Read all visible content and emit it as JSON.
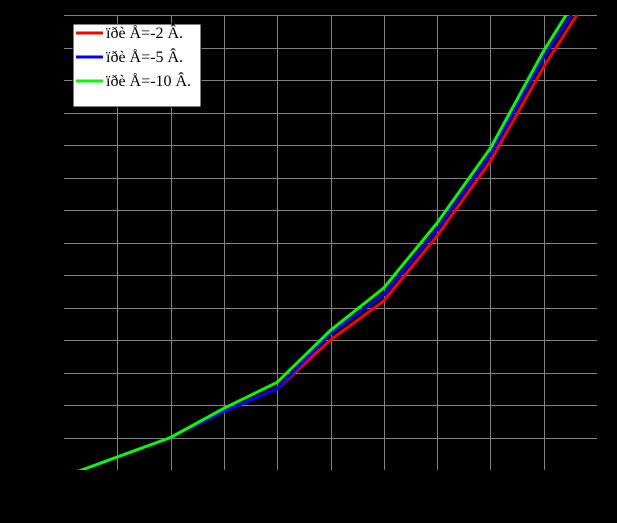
{
  "chart_data": {
    "type": "line",
    "title": "",
    "xlabel": "",
    "ylabel": "",
    "xlim": [
      0,
      10
    ],
    "ylim": [
      0,
      14
    ],
    "x_gridlines": [
      1,
      2,
      3,
      4,
      5,
      6,
      7,
      8,
      9
    ],
    "y_gridlines": [
      1,
      2,
      3,
      4,
      5,
      6,
      7,
      8,
      9,
      10,
      11,
      12,
      13,
      14
    ],
    "grid": true,
    "legend_position": "top-left",
    "series": [
      {
        "name": "ïðè Å=-2 Â.",
        "color": "#ff0000",
        "points": [
          [
            0,
            -0.2
          ],
          [
            1,
            0.4
          ],
          [
            2,
            1.0
          ],
          [
            3,
            1.8
          ],
          [
            4,
            2.5
          ],
          [
            5,
            4.0
          ],
          [
            6,
            5.2
          ],
          [
            7,
            7.2
          ],
          [
            8,
            9.5
          ],
          [
            9,
            12.4
          ],
          [
            9.7,
            14.2
          ]
        ]
      },
      {
        "name": "ïðè Å=-5 Â.",
        "color": "#0000ff",
        "points": [
          [
            0,
            -0.2
          ],
          [
            1,
            0.4
          ],
          [
            2,
            1.0
          ],
          [
            3,
            1.8
          ],
          [
            4,
            2.5
          ],
          [
            5,
            4.2
          ],
          [
            6,
            5.4
          ],
          [
            7,
            7.4
          ],
          [
            8,
            9.7
          ],
          [
            9,
            12.7
          ],
          [
            9.6,
            14.2
          ]
        ]
      },
      {
        "name": "ïðè Å=-10 Â.",
        "color": "#00ff00",
        "points": [
          [
            0,
            -0.2
          ],
          [
            1,
            0.4
          ],
          [
            2,
            1.0
          ],
          [
            3,
            1.9
          ],
          [
            4,
            2.7
          ],
          [
            5,
            4.3
          ],
          [
            6,
            5.6
          ],
          [
            7,
            7.6
          ],
          [
            8,
            9.9
          ],
          [
            9,
            12.9
          ],
          [
            9.5,
            14.2
          ]
        ]
      }
    ]
  }
}
